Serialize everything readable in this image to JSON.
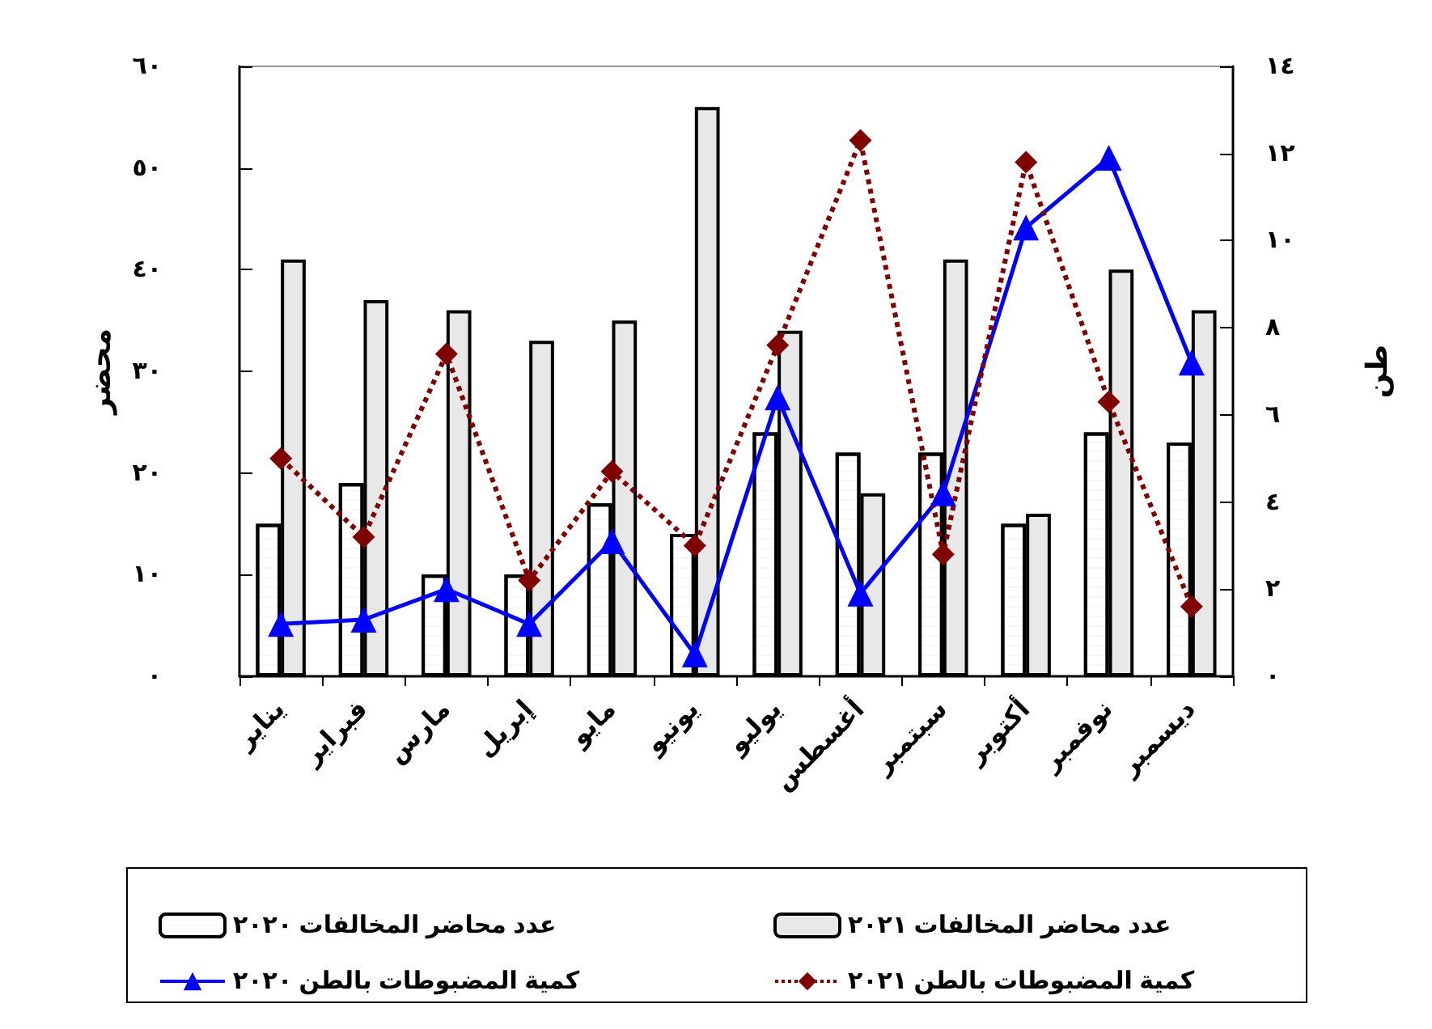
{
  "chart_data": {
    "type": "bar",
    "categories": [
      "يناير",
      "فبراير",
      "مارس",
      "إبريل",
      "مايو",
      "يونيو",
      "يوليو",
      "أغسطس",
      "سبتمبر",
      "أكتوبر",
      "نوفمبر",
      "ديسمبر"
    ],
    "series": [
      {
        "name": "عدد محاضر المخالفات ٢٠٢٠",
        "type": "bar",
        "color": "#ffffff",
        "values": [
          15,
          19,
          10,
          10,
          17,
          14,
          24,
          22,
          22,
          15,
          24,
          23
        ]
      },
      {
        "name": "عدد محاضر المخالفات ٢٠٢١",
        "type": "bar",
        "color": "#e8e8e8",
        "values": [
          41,
          37,
          36,
          33,
          35,
          56,
          34,
          18,
          41,
          16,
          40,
          36
        ]
      },
      {
        "name": "كمية المضبوطات بالطن ٢٠٢٠",
        "type": "line",
        "axis": "y2",
        "color": "#0000ff",
        "marker": "triangle",
        "line_style": "solid",
        "values": [
          1.2,
          1.3,
          2.0,
          1.2,
          3.1,
          0.5,
          6.4,
          1.9,
          4.2,
          10.3,
          11.9,
          7.2
        ]
      },
      {
        "name": "كمية المضبوطات بالطن ٢٠٢١",
        "type": "line",
        "axis": "y2",
        "color": "#800000",
        "marker": "diamond",
        "line_style": "dotted",
        "values": [
          5.0,
          3.2,
          7.4,
          2.2,
          4.7,
          3.0,
          7.6,
          12.3,
          2.8,
          11.8,
          6.3,
          1.6
        ]
      }
    ],
    "ylabel": "محضر",
    "y2label": "طن",
    "ylim": [
      0,
      60
    ],
    "yticks": [
      {
        "value": 0,
        "label": "٠"
      },
      {
        "value": 10,
        "label": "١٠"
      },
      {
        "value": 20,
        "label": "٢٠"
      },
      {
        "value": 30,
        "label": "٣٠"
      },
      {
        "value": 40,
        "label": "٤٠"
      },
      {
        "value": 50,
        "label": "٥٠"
      },
      {
        "value": 60,
        "label": "٦٠"
      }
    ],
    "y2lim": [
      0,
      14
    ],
    "y2ticks": [
      {
        "value": 0,
        "label": "٠"
      },
      {
        "value": 2,
        "label": "٢"
      },
      {
        "value": 4,
        "label": "٤"
      },
      {
        "value": 6,
        "label": "٦"
      },
      {
        "value": 8,
        "label": "٨"
      },
      {
        "value": 10,
        "label": "١٠"
      },
      {
        "value": 12,
        "label": "١٢"
      },
      {
        "value": 14,
        "label": "١٤"
      }
    ],
    "grid": false,
    "legend": "bottom"
  }
}
